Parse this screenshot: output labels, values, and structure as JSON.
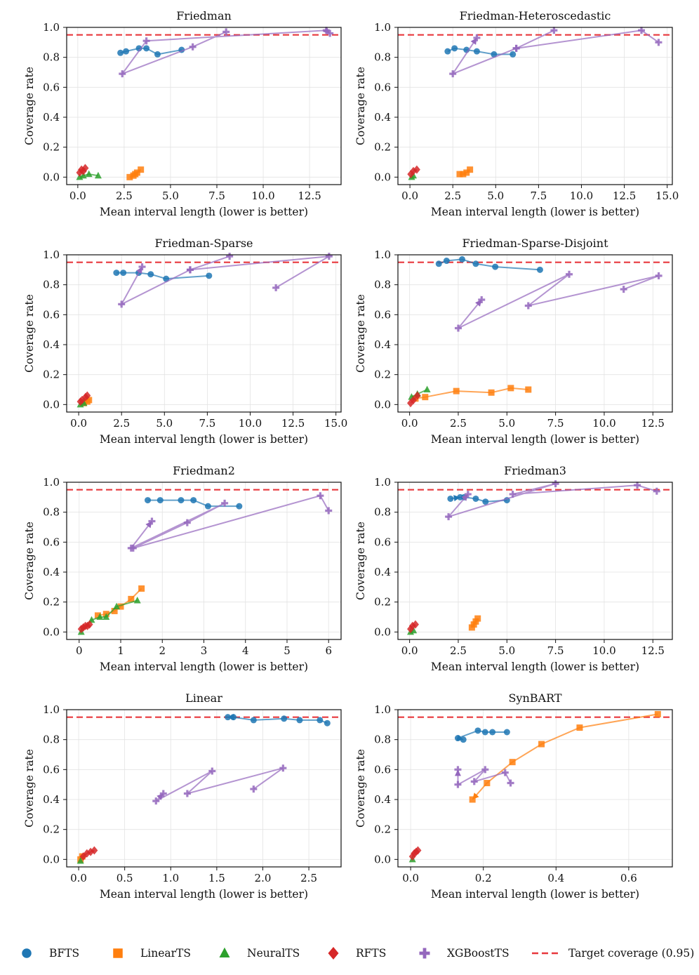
{
  "colors": {
    "BFTS": "#1f77b4",
    "LinearTS": "#ff7f0e",
    "NeuralTS": "#2ca02c",
    "RFTS": "#d62728",
    "XGBoostTS": "#9467bd",
    "target": "#e8383d",
    "grid": "#e3e3e3"
  },
  "legend": [
    {
      "label": "BFTS",
      "marker": "circle",
      "color_key": "BFTS"
    },
    {
      "label": "LinearTS",
      "marker": "square",
      "color_key": "LinearTS"
    },
    {
      "label": "NeuralTS",
      "marker": "triangle",
      "color_key": "NeuralTS"
    },
    {
      "label": "RFTS",
      "marker": "diamond",
      "color_key": "RFTS"
    },
    {
      "label": "XGBoostTS",
      "marker": "plus",
      "color_key": "XGBoostTS"
    },
    {
      "label": "Target coverage (0.95)",
      "marker": "dash",
      "color_key": "target"
    }
  ],
  "chart_data": [
    {
      "type": "line",
      "title": "Friedman",
      "xlabel": "Mean interval length (lower is better)",
      "ylabel": "Coverage rate",
      "xlim": [
        -0.6,
        14.2
      ],
      "ylim": [
        -0.05,
        1.0
      ],
      "xticks": [
        0,
        2.5,
        5,
        7.5,
        10,
        12.5
      ],
      "xtick_labels": [
        "0.0",
        "2.5",
        "5.0",
        "7.5",
        "10.0",
        "12.5"
      ],
      "yticks": [
        0,
        0.2,
        0.4,
        0.6,
        0.8,
        1.0
      ],
      "ytick_labels": [
        "0.0",
        "0.2",
        "0.4",
        "0.6",
        "0.8",
        "1.0"
      ],
      "target": 0.95,
      "series": [
        {
          "name": "BFTS",
          "x": [
            2.3,
            2.6,
            3.3,
            3.7,
            4.3,
            5.6
          ],
          "y": [
            0.83,
            0.84,
            0.86,
            0.86,
            0.82,
            0.85
          ],
          "arrow": false
        },
        {
          "name": "LinearTS",
          "x": [
            2.8,
            3.0,
            3.1,
            3.2,
            3.4
          ],
          "y": [
            0.0,
            0.01,
            0.02,
            0.03,
            0.05
          ],
          "arrow": false
        },
        {
          "name": "NeuralTS",
          "x": [
            0.1,
            0.3,
            0.6,
            1.1
          ],
          "y": [
            0.0,
            0.01,
            0.02,
            0.01
          ],
          "arrow": false
        },
        {
          "name": "RFTS",
          "x": [
            0.1,
            0.2,
            0.3,
            0.4
          ],
          "y": [
            0.03,
            0.05,
            0.04,
            0.06
          ],
          "arrow": false
        },
        {
          "name": "XGBoostTS",
          "x": [
            8.0,
            6.2,
            2.4,
            3.7,
            13.4,
            13.6
          ],
          "y": [
            0.97,
            0.87,
            0.69,
            0.91,
            0.98,
            0.96
          ],
          "arrow": true
        }
      ]
    },
    {
      "type": "line",
      "title": "Friedman-Heteroscedastic",
      "xlabel": "Mean interval length (lower is better)",
      "ylabel": "Coverage rate",
      "xlim": [
        -0.7,
        15.3
      ],
      "ylim": [
        -0.05,
        1.0
      ],
      "xticks": [
        0,
        2.5,
        5,
        7.5,
        10,
        12.5,
        15
      ],
      "xtick_labels": [
        "0.0",
        "2.5",
        "5.0",
        "7.5",
        "10.0",
        "12.5",
        "15.0"
      ],
      "yticks": [
        0,
        0.2,
        0.4,
        0.6,
        0.8,
        1.0
      ],
      "ytick_labels": [
        "0.0",
        "0.2",
        "0.4",
        "0.6",
        "0.8",
        "1.0"
      ],
      "target": 0.95,
      "series": [
        {
          "name": "BFTS",
          "x": [
            2.2,
            2.6,
            3.3,
            3.9,
            4.9,
            6.0
          ],
          "y": [
            0.84,
            0.86,
            0.85,
            0.84,
            0.82,
            0.82
          ],
          "arrow": false
        },
        {
          "name": "LinearTS",
          "x": [
            2.9,
            3.1,
            3.3,
            3.5
          ],
          "y": [
            0.02,
            0.02,
            0.03,
            0.05
          ],
          "arrow": false
        },
        {
          "name": "NeuralTS",
          "x": [
            0.1,
            0.2
          ],
          "y": [
            0.0,
            0.01
          ],
          "arrow": false
        },
        {
          "name": "RFTS",
          "x": [
            0.05,
            0.2,
            0.4
          ],
          "y": [
            0.02,
            0.04,
            0.05
          ],
          "arrow": false
        },
        {
          "name": "XGBoostTS",
          "x": [
            14.5,
            13.5,
            6.2,
            2.5,
            3.9
          ],
          "y": [
            0.9,
            0.98,
            0.86,
            0.69,
            0.93
          ],
          "arrow": true
        },
        {
          "name": "XGBoostTS",
          "x": [
            8.4,
            6.2
          ],
          "y": [
            0.98,
            0.86
          ],
          "arrow": false
        }
      ]
    },
    {
      "type": "line",
      "title": "Friedman-Sparse",
      "xlabel": "Mean interval length (lower is better)",
      "ylabel": "Coverage rate",
      "xlim": [
        -0.7,
        15.3
      ],
      "ylim": [
        -0.05,
        1.0
      ],
      "xticks": [
        0,
        2.5,
        5,
        7.5,
        10,
        12.5,
        15
      ],
      "xtick_labels": [
        "0.0",
        "2.5",
        "5.0",
        "7.5",
        "10.0",
        "12.5",
        "15.0"
      ],
      "yticks": [
        0,
        0.2,
        0.4,
        0.6,
        0.8,
        1.0
      ],
      "ytick_labels": [
        "0.0",
        "0.2",
        "0.4",
        "0.6",
        "0.8",
        "1.0"
      ],
      "target": 0.95,
      "series": [
        {
          "name": "BFTS",
          "x": [
            2.2,
            2.6,
            3.5,
            4.2,
            5.1,
            7.6
          ],
          "y": [
            0.88,
            0.88,
            0.88,
            0.87,
            0.84,
            0.86
          ],
          "arrow": false
        },
        {
          "name": "LinearTS",
          "x": [
            0.3,
            0.5,
            0.6
          ],
          "y": [
            0.01,
            0.02,
            0.03
          ],
          "arrow": false
        },
        {
          "name": "NeuralTS",
          "x": [
            0.1,
            0.3
          ],
          "y": [
            0.0,
            0.01
          ],
          "arrow": false
        },
        {
          "name": "RFTS",
          "x": [
            0.1,
            0.2,
            0.4,
            0.5
          ],
          "y": [
            0.02,
            0.03,
            0.05,
            0.06
          ],
          "arrow": false
        },
        {
          "name": "XGBoostTS",
          "x": [
            11.5,
            14.6,
            6.5,
            2.5,
            3.7
          ],
          "y": [
            0.78,
            0.99,
            0.9,
            0.67,
            0.92
          ],
          "arrow": true
        },
        {
          "name": "XGBoostTS",
          "x": [
            8.8,
            6.5
          ],
          "y": [
            0.99,
            0.9
          ],
          "arrow": false
        }
      ]
    },
    {
      "type": "line",
      "title": "Friedman-Sparse-Disjoint",
      "xlabel": "Mean interval length (lower is better)",
      "ylabel": "Coverage rate",
      "xlim": [
        -0.6,
        13.5
      ],
      "ylim": [
        -0.05,
        1.0
      ],
      "xticks": [
        0,
        2.5,
        5,
        7.5,
        10,
        12.5
      ],
      "xtick_labels": [
        "0.0",
        "2.5",
        "5.0",
        "7.5",
        "10.0",
        "12.5"
      ],
      "yticks": [
        0,
        0.2,
        0.4,
        0.6,
        0.8,
        1.0
      ],
      "ytick_labels": [
        "0.0",
        "0.2",
        "0.4",
        "0.6",
        "0.8",
        "1.0"
      ],
      "target": 0.95,
      "series": [
        {
          "name": "BFTS",
          "x": [
            1.5,
            1.9,
            2.7,
            3.4,
            4.4,
            6.7
          ],
          "y": [
            0.94,
            0.96,
            0.97,
            0.94,
            0.92,
            0.9
          ],
          "arrow": false
        },
        {
          "name": "LinearTS",
          "x": [
            0.3,
            0.8,
            2.4,
            4.2,
            5.2,
            6.1
          ],
          "y": [
            0.04,
            0.05,
            0.09,
            0.08,
            0.11,
            0.1
          ],
          "arrow": false
        },
        {
          "name": "NeuralTS",
          "x": [
            0.1,
            0.4,
            0.9
          ],
          "y": [
            0.05,
            0.07,
            0.1
          ],
          "arrow": false
        },
        {
          "name": "RFTS",
          "x": [
            0.05,
            0.2,
            0.4
          ],
          "y": [
            0.01,
            0.03,
            0.06
          ],
          "arrow": false
        },
        {
          "name": "XGBoostTS",
          "x": [
            11.0,
            12.8,
            6.1,
            8.2,
            2.5,
            3.7
          ],
          "y": [
            0.77,
            0.86,
            0.66,
            0.87,
            0.51,
            0.7
          ],
          "arrow": true
        }
      ]
    },
    {
      "type": "line",
      "title": "Friedman2",
      "xlabel": "Mean interval length (lower is better)",
      "ylabel": "Coverage rate",
      "xlim": [
        -0.3,
        6.3
      ],
      "ylim": [
        -0.05,
        1.0
      ],
      "xticks": [
        0,
        1,
        2,
        3,
        4,
        5,
        6
      ],
      "xtick_labels": [
        "0",
        "1",
        "2",
        "3",
        "4",
        "5",
        "6"
      ],
      "yticks": [
        0,
        0.2,
        0.4,
        0.6,
        0.8,
        1.0
      ],
      "ytick_labels": [
        "0.0",
        "0.2",
        "0.4",
        "0.6",
        "0.8",
        "1.0"
      ],
      "target": 0.95,
      "series": [
        {
          "name": "BFTS",
          "x": [
            1.65,
            1.95,
            2.45,
            2.75,
            3.1,
            3.85
          ],
          "y": [
            0.88,
            0.88,
            0.88,
            0.88,
            0.84,
            0.84
          ],
          "arrow": false
        },
        {
          "name": "LinearTS",
          "x": [
            0.45,
            0.65,
            0.85,
            1.0,
            1.25,
            1.5
          ],
          "y": [
            0.11,
            0.12,
            0.14,
            0.17,
            0.22,
            0.29
          ],
          "arrow": false
        },
        {
          "name": "NeuralTS",
          "x": [
            0.05,
            0.3,
            0.5,
            0.65,
            0.9,
            1.4
          ],
          "y": [
            0.0,
            0.08,
            0.1,
            0.1,
            0.17,
            0.21
          ],
          "arrow": false
        },
        {
          "name": "RFTS",
          "x": [
            0.05,
            0.1,
            0.15,
            0.2,
            0.25
          ],
          "y": [
            0.02,
            0.03,
            0.04,
            0.04,
            0.05
          ],
          "arrow": false
        },
        {
          "name": "XGBoostTS",
          "x": [
            6.0,
            5.8,
            1.3,
            2.6,
            3.5,
            1.25,
            1.75
          ],
          "y": [
            0.81,
            0.91,
            0.56,
            0.73,
            0.86,
            0.56,
            0.74
          ],
          "arrow": true
        }
      ]
    },
    {
      "type": "line",
      "title": "Friedman3",
      "xlabel": "Mean interval length (lower is better)",
      "ylabel": "Coverage rate",
      "xlim": [
        -0.6,
        13.5
      ],
      "ylim": [
        -0.05,
        1.0
      ],
      "xticks": [
        0,
        2.5,
        5,
        7.5,
        10,
        12.5
      ],
      "xtick_labels": [
        "0.0",
        "2.5",
        "5.0",
        "7.5",
        "10.0",
        "12.5"
      ],
      "yticks": [
        0,
        0.2,
        0.4,
        0.6,
        0.8,
        1.0
      ],
      "ytick_labels": [
        "0.0",
        "0.2",
        "0.4",
        "0.6",
        "0.8",
        "1.0"
      ],
      "target": 0.95,
      "series": [
        {
          "name": "BFTS",
          "x": [
            5.0,
            3.9,
            3.4,
            2.8,
            2.1,
            2.6
          ],
          "y": [
            0.88,
            0.87,
            0.89,
            0.9,
            0.89,
            0.9
          ],
          "arrow": true
        },
        {
          "name": "LinearTS",
          "x": [
            3.2,
            3.3,
            3.4,
            3.5
          ],
          "y": [
            0.03,
            0.05,
            0.07,
            0.09
          ],
          "arrow": false
        },
        {
          "name": "NeuralTS",
          "x": [
            0.05,
            0.2
          ],
          "y": [
            0.0,
            0.01
          ],
          "arrow": false
        },
        {
          "name": "RFTS",
          "x": [
            0.05,
            0.15,
            0.3
          ],
          "y": [
            0.02,
            0.04,
            0.05
          ],
          "arrow": false
        },
        {
          "name": "XGBoostTS",
          "x": [
            12.7,
            11.7,
            5.3,
            7.5,
            2.0,
            3.0
          ],
          "y": [
            0.94,
            0.98,
            0.92,
            0.99,
            0.77,
            0.92
          ],
          "arrow": true
        }
      ]
    },
    {
      "type": "line",
      "title": "Linear",
      "xlabel": "Mean interval length (lower is better)",
      "ylabel": "Coverage rate",
      "xlim": [
        -0.13,
        2.85
      ],
      "ylim": [
        -0.05,
        1.0
      ],
      "xticks": [
        0,
        0.5,
        1,
        1.5,
        2,
        2.5
      ],
      "xtick_labels": [
        "0.0",
        "0.5",
        "1.0",
        "1.5",
        "2.0",
        "2.5"
      ],
      "yticks": [
        0,
        0.2,
        0.4,
        0.6,
        0.8,
        1.0
      ],
      "ytick_labels": [
        "0.0",
        "0.2",
        "0.4",
        "0.6",
        "0.8",
        "1.0"
      ],
      "target": 0.95,
      "series": [
        {
          "name": "BFTS",
          "x": [
            2.7,
            2.62,
            2.4,
            2.23,
            1.9,
            1.68,
            1.62
          ],
          "y": [
            0.91,
            0.93,
            0.93,
            0.94,
            0.93,
            0.95,
            0.95
          ],
          "arrow": true
        },
        {
          "name": "LinearTS",
          "x": [
            0.02,
            0.04
          ],
          "y": [
            0.0,
            0.02
          ],
          "arrow": false
        },
        {
          "name": "NeuralTS",
          "x": [
            0.02
          ],
          "y": [
            -0.01
          ],
          "arrow": false
        },
        {
          "name": "RFTS",
          "x": [
            0.05,
            0.09,
            0.13,
            0.17
          ],
          "y": [
            0.02,
            0.04,
            0.05,
            0.06
          ],
          "arrow": false
        },
        {
          "name": "XGBoostTS",
          "x": [
            1.9,
            2.22,
            1.18,
            1.45,
            0.84,
            0.92
          ],
          "y": [
            0.47,
            0.61,
            0.44,
            0.59,
            0.39,
            0.44
          ],
          "arrow": true
        }
      ]
    },
    {
      "type": "line",
      "title": "SynBART",
      "xlabel": "Mean interval length (lower is better)",
      "ylabel": "Coverage rate",
      "xlim": [
        -0.035,
        0.72
      ],
      "ylim": [
        -0.05,
        1.0
      ],
      "xticks": [
        0,
        0.2,
        0.4,
        0.6
      ],
      "xtick_labels": [
        "0.0",
        "0.2",
        "0.4",
        "0.6"
      ],
      "yticks": [
        0,
        0.2,
        0.4,
        0.6,
        0.8,
        1.0
      ],
      "ytick_labels": [
        "0.0",
        "0.2",
        "0.4",
        "0.6",
        "0.8",
        "1.0"
      ],
      "target": 0.95,
      "series": [
        {
          "name": "BFTS",
          "x": [
            0.265,
            0.225,
            0.205,
            0.185,
            0.13,
            0.145
          ],
          "y": [
            0.85,
            0.85,
            0.85,
            0.86,
            0.81,
            0.8
          ],
          "arrow": true
        },
        {
          "name": "LinearTS",
          "x": [
            0.68,
            0.465,
            0.36,
            0.28,
            0.21,
            0.17
          ],
          "y": [
            0.97,
            0.88,
            0.77,
            0.65,
            0.51,
            0.4
          ],
          "arrow": true
        },
        {
          "name": "NeuralTS",
          "x": [
            0.005
          ],
          "y": [
            0.0
          ],
          "arrow": false
        },
        {
          "name": "RFTS",
          "x": [
            0.005,
            0.01,
            0.015,
            0.02
          ],
          "y": [
            0.02,
            0.04,
            0.05,
            0.06
          ],
          "arrow": false
        },
        {
          "name": "XGBoostTS",
          "x": [
            0.275,
            0.26,
            0.175,
            0.205,
            0.13,
            0.13
          ],
          "y": [
            0.51,
            0.58,
            0.52,
            0.6,
            0.5,
            0.6
          ],
          "arrow": true
        }
      ]
    }
  ]
}
